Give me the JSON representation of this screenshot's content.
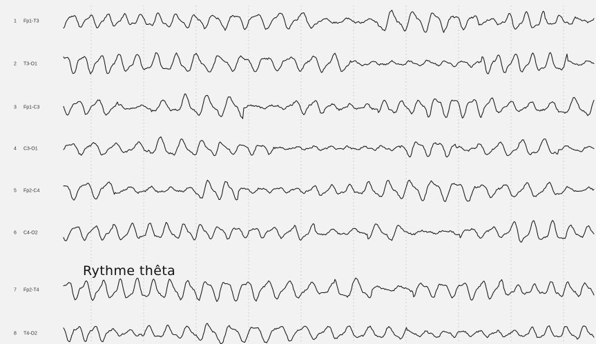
{
  "chart_data": {
    "type": "line",
    "annotation": "Rythme thêta",
    "grid": true,
    "channels": [
      {
        "index": "1",
        "name": "Fp1-T3"
      },
      {
        "index": "2",
        "name": "T3-O1"
      },
      {
        "index": "3",
        "name": "Fp1-C3"
      },
      {
        "index": "4",
        "name": "C3-O1"
      },
      {
        "index": "5",
        "name": "Fp2-C4"
      },
      {
        "index": "6",
        "name": "C4-O2"
      },
      {
        "index": "7",
        "name": "Fp2-T4"
      },
      {
        "index": "8",
        "name": "T4-O2"
      }
    ]
  },
  "colors": {
    "background": "#f2f2f2",
    "trace": "#1e1e1e",
    "grid": "#cfcfcf",
    "label": "#333333"
  }
}
